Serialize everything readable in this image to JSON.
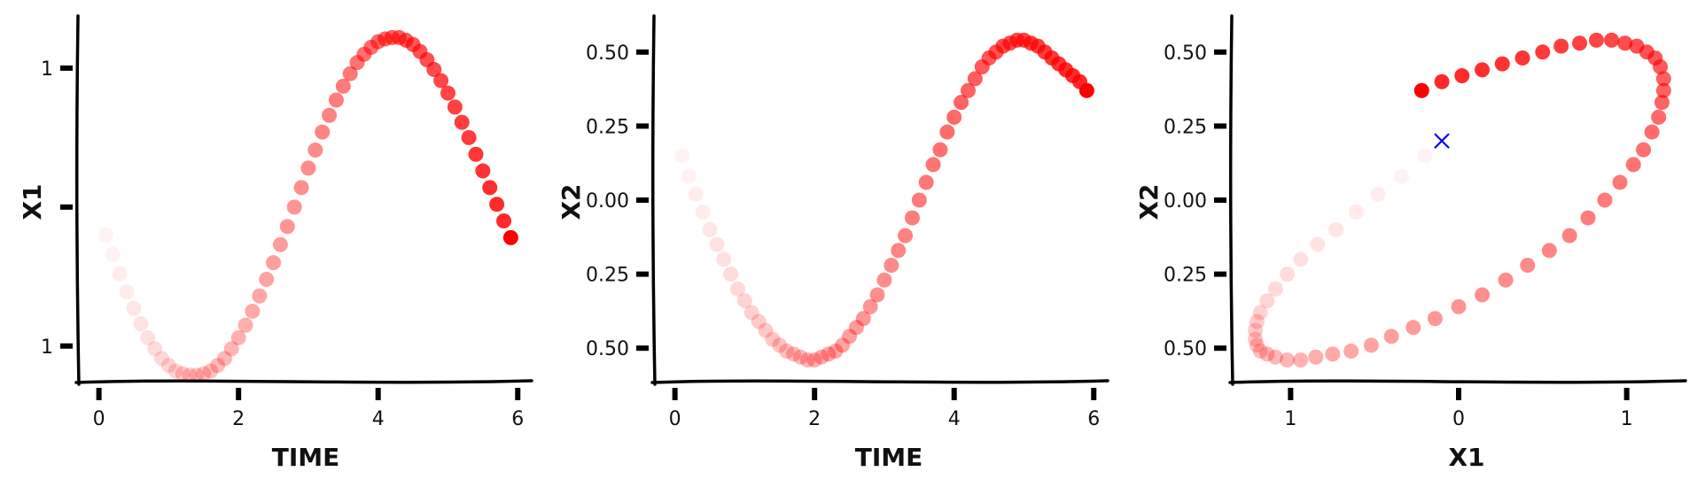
{
  "chart_data": [
    {
      "type": "scatter",
      "xlabel": "TIME",
      "ylabel": "X1",
      "xlim": [
        -0.3,
        6.2
      ],
      "ylim": [
        -1.25,
        1.35
      ],
      "xticks": [
        0,
        2,
        4,
        6
      ],
      "xtick_labels": [
        "0",
        "2",
        "4",
        "6"
      ],
      "yticks": [
        -1,
        0,
        1
      ],
      "ytick_labels": [
        "1",
        "",
        "1"
      ],
      "color": "#ff0000",
      "x": [
        0.1,
        0.2,
        0.3,
        0.4,
        0.5,
        0.6,
        0.7,
        0.8,
        0.9,
        1.0,
        1.1,
        1.2,
        1.3,
        1.4,
        1.5,
        1.6,
        1.7,
        1.8,
        1.9,
        2.0,
        2.1,
        2.2,
        2.3,
        2.4,
        2.5,
        2.6,
        2.7,
        2.8,
        2.9,
        3.0,
        3.1,
        3.2,
        3.3,
        3.4,
        3.5,
        3.6,
        3.7,
        3.8,
        3.9,
        4.0,
        4.1,
        4.2,
        4.3,
        4.4,
        4.5,
        4.6,
        4.7,
        4.8,
        4.9,
        5.0,
        5.1,
        5.2,
        5.3,
        5.4,
        5.5,
        5.6,
        5.7,
        5.8,
        5.9
      ],
      "y": [
        -0.2,
        -0.34,
        -0.48,
        -0.61,
        -0.73,
        -0.84,
        -0.94,
        -1.02,
        -1.09,
        -1.14,
        -1.18,
        -1.2,
        -1.21,
        -1.21,
        -1.2,
        -1.18,
        -1.14,
        -1.09,
        -1.02,
        -0.94,
        -0.85,
        -0.75,
        -0.64,
        -0.52,
        -0.4,
        -0.27,
        -0.14,
        0.0,
        0.14,
        0.28,
        0.41,
        0.54,
        0.66,
        0.77,
        0.87,
        0.96,
        1.04,
        1.1,
        1.15,
        1.19,
        1.21,
        1.22,
        1.22,
        1.2,
        1.17,
        1.12,
        1.06,
        0.99,
        0.91,
        0.82,
        0.72,
        0.61,
        0.5,
        0.38,
        0.26,
        0.14,
        0.02,
        -0.1,
        -0.22
      ],
      "alpha": [
        0.05,
        0.05,
        0.07,
        0.08,
        0.1,
        0.11,
        0.12,
        0.14,
        0.15,
        0.17,
        0.18,
        0.2,
        0.21,
        0.22,
        0.24,
        0.25,
        0.27,
        0.28,
        0.29,
        0.31,
        0.32,
        0.34,
        0.35,
        0.36,
        0.38,
        0.39,
        0.41,
        0.42,
        0.44,
        0.45,
        0.46,
        0.48,
        0.49,
        0.51,
        0.52,
        0.53,
        0.55,
        0.56,
        0.58,
        0.59,
        0.61,
        0.62,
        0.63,
        0.65,
        0.66,
        0.68,
        0.69,
        0.7,
        0.72,
        0.73,
        0.75,
        0.76,
        0.77,
        0.79,
        0.8,
        0.82,
        0.83,
        0.84,
        1.0
      ]
    },
    {
      "type": "scatter",
      "xlabel": "TIME",
      "ylabel": "X2",
      "xlim": [
        -0.3,
        6.2
      ],
      "ylim": [
        -0.61,
        0.61
      ],
      "xticks": [
        0,
        2,
        4,
        6
      ],
      "xtick_labels": [
        "0",
        "2",
        "4",
        "6"
      ],
      "yticks": [
        -0.5,
        -0.25,
        0,
        0.25,
        0.5
      ],
      "ytick_labels": [
        "0.50",
        "0.25",
        "0.00",
        "0.25",
        "0.50"
      ],
      "color": "#ff0000",
      "x": [
        0.1,
        0.2,
        0.3,
        0.4,
        0.5,
        0.6,
        0.7,
        0.8,
        0.9,
        1.0,
        1.1,
        1.2,
        1.3,
        1.4,
        1.5,
        1.6,
        1.7,
        1.8,
        1.9,
        2.0,
        2.1,
        2.2,
        2.3,
        2.4,
        2.5,
        2.6,
        2.7,
        2.8,
        2.9,
        3.0,
        3.1,
        3.2,
        3.3,
        3.4,
        3.5,
        3.6,
        3.7,
        3.8,
        3.9,
        4.0,
        4.1,
        4.2,
        4.3,
        4.4,
        4.5,
        4.6,
        4.7,
        4.8,
        4.9,
        5.0,
        5.1,
        5.2,
        5.3,
        5.4,
        5.5,
        5.6,
        5.7,
        5.8,
        5.9
      ],
      "y": [
        0.15,
        0.08,
        0.02,
        -0.04,
        -0.1,
        -0.15,
        -0.2,
        -0.25,
        -0.3,
        -0.34,
        -0.38,
        -0.41,
        -0.44,
        -0.47,
        -0.49,
        -0.51,
        -0.52,
        -0.53,
        -0.54,
        -0.54,
        -0.53,
        -0.52,
        -0.51,
        -0.49,
        -0.46,
        -0.43,
        -0.4,
        -0.36,
        -0.32,
        -0.27,
        -0.22,
        -0.17,
        -0.12,
        -0.06,
        0.0,
        0.06,
        0.12,
        0.17,
        0.23,
        0.28,
        0.33,
        0.37,
        0.41,
        0.45,
        0.48,
        0.5,
        0.52,
        0.53,
        0.54,
        0.54,
        0.53,
        0.52,
        0.5,
        0.48,
        0.46,
        0.44,
        0.42,
        0.4,
        0.37
      ],
      "alpha": [
        0.05,
        0.05,
        0.07,
        0.08,
        0.1,
        0.11,
        0.12,
        0.14,
        0.15,
        0.17,
        0.18,
        0.2,
        0.21,
        0.22,
        0.24,
        0.25,
        0.27,
        0.28,
        0.29,
        0.31,
        0.32,
        0.34,
        0.35,
        0.36,
        0.38,
        0.39,
        0.41,
        0.42,
        0.44,
        0.45,
        0.46,
        0.48,
        0.49,
        0.51,
        0.52,
        0.53,
        0.55,
        0.56,
        0.58,
        0.59,
        0.61,
        0.62,
        0.63,
        0.65,
        0.66,
        0.68,
        0.69,
        0.7,
        0.72,
        0.73,
        0.75,
        0.76,
        0.77,
        0.79,
        0.8,
        0.82,
        0.83,
        0.84,
        1.0
      ]
    },
    {
      "type": "scatter",
      "xlabel": "X1",
      "ylabel": "X2",
      "xlim": [
        -1.35,
        1.35
      ],
      "ylim": [
        -0.61,
        0.61
      ],
      "xticks": [
        -1,
        0,
        1
      ],
      "xtick_labels": [
        "1",
        "0",
        "1"
      ],
      "yticks": [
        -0.5,
        -0.25,
        0,
        0.25,
        0.5
      ],
      "ytick_labels": [
        "0.50",
        "0.25",
        "0.00",
        "0.25",
        "0.50"
      ],
      "color": "#ff0000",
      "marker_color": "#0000ff",
      "marker": {
        "x": -0.1,
        "y": 0.2
      },
      "x": [
        -0.2,
        -0.34,
        -0.48,
        -0.61,
        -0.73,
        -0.84,
        -0.94,
        -1.02,
        -1.09,
        -1.14,
        -1.18,
        -1.2,
        -1.21,
        -1.21,
        -1.2,
        -1.18,
        -1.14,
        -1.09,
        -1.02,
        -0.94,
        -0.85,
        -0.75,
        -0.64,
        -0.52,
        -0.4,
        -0.27,
        -0.14,
        0.0,
        0.14,
        0.28,
        0.41,
        0.54,
        0.66,
        0.77,
        0.87,
        0.96,
        1.04,
        1.1,
        1.15,
        1.19,
        1.21,
        1.22,
        1.22,
        1.2,
        1.17,
        1.12,
        1.06,
        0.99,
        0.91,
        0.82,
        0.72,
        0.61,
        0.5,
        0.38,
        0.26,
        0.14,
        0.02,
        -0.1,
        -0.22
      ],
      "y": [
        0.15,
        0.08,
        0.02,
        -0.04,
        -0.1,
        -0.15,
        -0.2,
        -0.25,
        -0.3,
        -0.34,
        -0.38,
        -0.41,
        -0.44,
        -0.47,
        -0.49,
        -0.51,
        -0.52,
        -0.53,
        -0.54,
        -0.54,
        -0.53,
        -0.52,
        -0.51,
        -0.49,
        -0.46,
        -0.43,
        -0.4,
        -0.36,
        -0.32,
        -0.27,
        -0.22,
        -0.17,
        -0.12,
        -0.06,
        0.0,
        0.06,
        0.12,
        0.17,
        0.23,
        0.28,
        0.33,
        0.37,
        0.41,
        0.45,
        0.48,
        0.5,
        0.52,
        0.53,
        0.54,
        0.54,
        0.53,
        0.52,
        0.5,
        0.48,
        0.46,
        0.44,
        0.42,
        0.4,
        0.37
      ],
      "alpha": [
        0.05,
        0.05,
        0.07,
        0.08,
        0.1,
        0.11,
        0.12,
        0.14,
        0.15,
        0.17,
        0.18,
        0.2,
        0.21,
        0.22,
        0.24,
        0.25,
        0.27,
        0.28,
        0.29,
        0.31,
        0.32,
        0.34,
        0.35,
        0.36,
        0.38,
        0.39,
        0.41,
        0.42,
        0.44,
        0.45,
        0.46,
        0.48,
        0.49,
        0.51,
        0.52,
        0.53,
        0.55,
        0.56,
        0.58,
        0.59,
        0.61,
        0.62,
        0.63,
        0.65,
        0.66,
        0.68,
        0.69,
        0.7,
        0.72,
        0.73,
        0.75,
        0.76,
        0.77,
        0.79,
        0.8,
        0.82,
        0.83,
        0.84,
        1.0
      ]
    }
  ]
}
